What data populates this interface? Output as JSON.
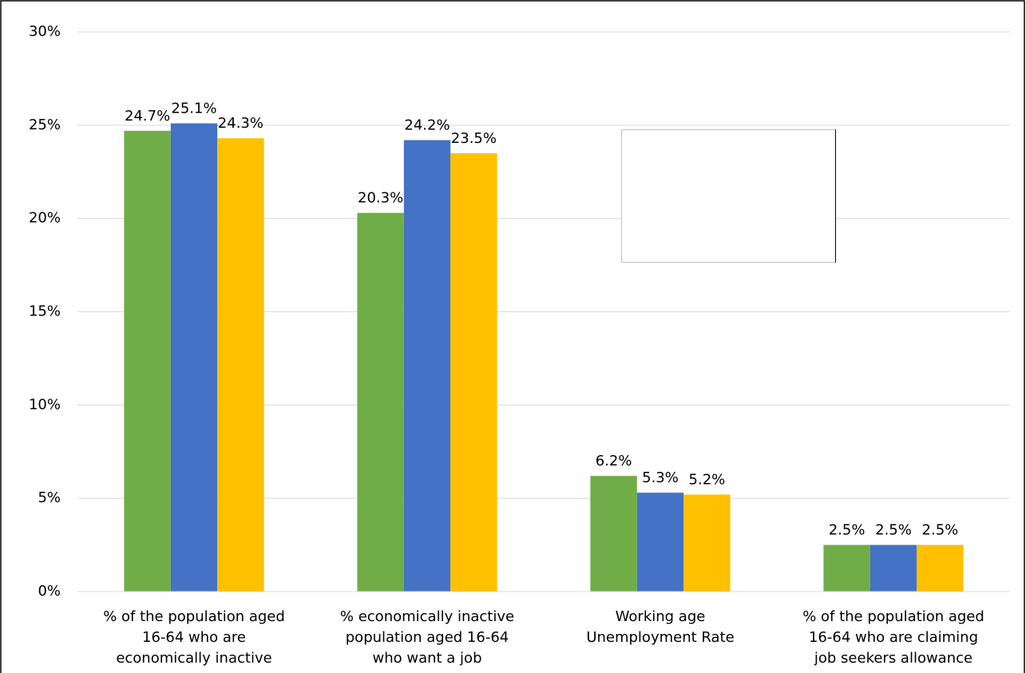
{
  "chart_data": {
    "type": "bar",
    "categories": [
      [
        "% of the population aged",
        "16-64 who are",
        "economically inactive"
      ],
      [
        "% economically inactive",
        "population aged 16-64",
        "who want a job"
      ],
      [
        "Working age",
        "Unemployment Rate"
      ],
      [
        "% of the population aged",
        "16-64 who are claiming",
        "job seekers allowance"
      ]
    ],
    "series": [
      {
        "color": "#70ad47",
        "values": [
          24.7,
          20.3,
          6.2,
          2.5
        ],
        "value_labels": [
          "24.7%",
          "20.3%",
          "6.2%",
          "2.5%"
        ]
      },
      {
        "color": "#4472c4",
        "values": [
          25.1,
          24.2,
          5.3,
          2.5
        ],
        "value_labels": [
          "25.1%",
          "24.2%",
          "5.3%",
          "2.5%"
        ]
      },
      {
        "color": "#ffc000",
        "values": [
          24.3,
          23.5,
          5.2,
          2.5
        ],
        "value_labels": [
          "24.3%",
          "23.5%",
          "5.2%",
          "2.5%"
        ]
      }
    ],
    "ylim": [
      0,
      30
    ],
    "yticks": [
      {
        "value": 0,
        "label": "0%"
      },
      {
        "value": 5,
        "label": "5%"
      },
      {
        "value": 10,
        "label": "10%"
      },
      {
        "value": 15,
        "label": "15%"
      },
      {
        "value": 20,
        "label": "20%"
      },
      {
        "value": 25,
        "label": "25%"
      },
      {
        "value": 30,
        "label": "30%"
      }
    ],
    "grid": true
  }
}
